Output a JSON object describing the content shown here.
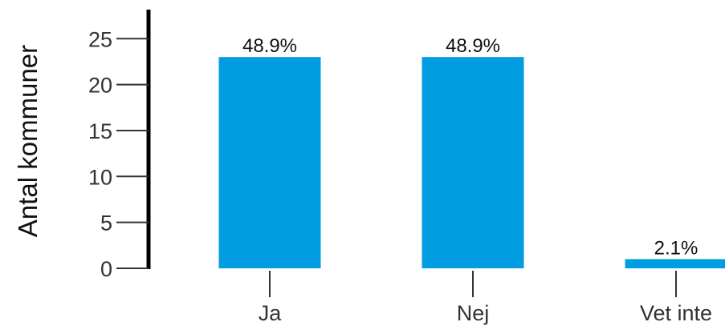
{
  "chart_data": {
    "type": "bar",
    "title": "",
    "xlabel": "",
    "ylabel": "Antal kommuner",
    "ylim": [
      0,
      28
    ],
    "yticks": [
      "0",
      "5",
      "10",
      "15",
      "20",
      "25"
    ],
    "grid": false,
    "legend": "none",
    "categories": [
      "Ja",
      "Nej",
      "Vet inte"
    ],
    "values": [
      23,
      23,
      1
    ],
    "data_labels": [
      "48.9%",
      "48.9%",
      "2.1%"
    ],
    "colors": {
      "bar": "#009ee0",
      "axis": "#000000",
      "tick": "#333333"
    }
  }
}
